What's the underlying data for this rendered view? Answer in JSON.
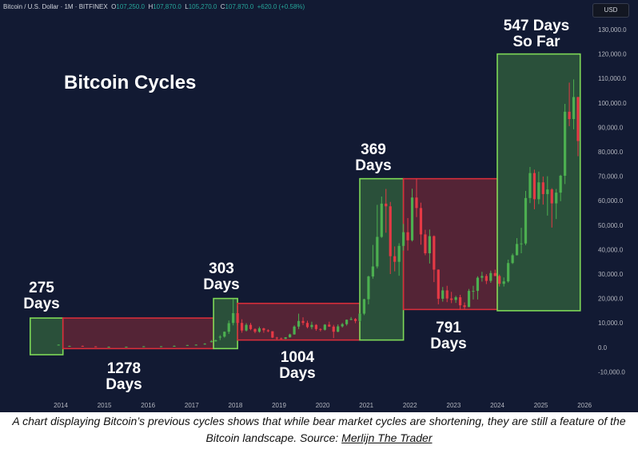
{
  "header": {
    "symbol": "Bitcoin / U.S. Dollar · 1M · BITFINEX",
    "o_label": "O",
    "o_value": "107,250.0",
    "h_label": "H",
    "h_value": "107,870.0",
    "l_label": "L",
    "l_value": "105,270.0",
    "c_label": "C",
    "c_value": "107,870.0",
    "change": "+620.0 (+0.58%)"
  },
  "currency_button": "USD",
  "colors": {
    "background": "#121a33",
    "bull_fill": "#2f5a3c",
    "bull_border": "#7ed957",
    "bear_fill": "#6b2838",
    "bear_border": "#d62e3a",
    "candle_up": "#4caf50",
    "candle_down": "#e53945"
  },
  "chart_data": {
    "type": "candlestick",
    "title": "Bitcoin Cycles",
    "x_ticks": [
      "2014",
      "2015",
      "2016",
      "2017",
      "2018",
      "2019",
      "2020",
      "2021",
      "2022",
      "2023",
      "2024",
      "2025",
      "2026"
    ],
    "y_ticks": [
      "130,000.0",
      "120,000.0",
      "110,000.0",
      "100,000.0",
      "90,000.0",
      "80,000.0",
      "70,000.0",
      "60,000.0",
      "50,000.0",
      "40,000.0",
      "30,000.0",
      "20,000.0",
      "10,000.0",
      "0.0",
      "-10,000.0"
    ],
    "ylim": [
      -10000,
      130000
    ],
    "xlim": [
      2014,
      2026
    ],
    "cycles": [
      {
        "phase": "bull",
        "start": 2013.3,
        "end": 2014.05,
        "low": -3000,
        "high": 12000,
        "label_lines": [
          "275",
          "Days"
        ],
        "label_pos": "above"
      },
      {
        "phase": "bear",
        "start": 2014.05,
        "end": 2017.5,
        "low": -500,
        "high": 12000,
        "label_lines": [
          "1278",
          "Days"
        ],
        "label_pos": "below"
      },
      {
        "phase": "bull",
        "start": 2017.5,
        "end": 2018.05,
        "low": -500,
        "high": 20000,
        "label_lines": [
          "303",
          "Days"
        ],
        "label_pos": "above"
      },
      {
        "phase": "bear",
        "start": 2018.05,
        "end": 2020.85,
        "low": 3000,
        "high": 18000,
        "label_lines": [
          "1004",
          "Days"
        ],
        "label_pos": "below"
      },
      {
        "phase": "bull",
        "start": 2020.85,
        "end": 2021.85,
        "low": 3000,
        "high": 69000,
        "label_lines": [
          "369",
          "Days"
        ],
        "label_pos": "above"
      },
      {
        "phase": "bear",
        "start": 2021.85,
        "end": 2024.0,
        "low": 15500,
        "high": 69000,
        "label_lines": [
          "791",
          "Days"
        ],
        "label_pos": "below"
      },
      {
        "phase": "bull",
        "start": 2024.0,
        "end": 2025.9,
        "low": 15000,
        "high": 120000,
        "label_lines": [
          "547 Days",
          "So Far"
        ],
        "label_pos": "above"
      }
    ],
    "candles": [
      [
        2013.95,
        900,
        1100,
        1200,
        800
      ],
      [
        2014.2,
        600,
        600,
        700,
        450
      ],
      [
        2014.5,
        620,
        600,
        700,
        500
      ],
      [
        2014.8,
        400,
        370,
        450,
        300
      ],
      [
        2015.1,
        250,
        250,
        320,
        170
      ],
      [
        2015.5,
        250,
        280,
        300,
        220
      ],
      [
        2015.9,
        350,
        430,
        500,
        330
      ],
      [
        2016.3,
        420,
        450,
        480,
        400
      ],
      [
        2016.6,
        600,
        620,
        780,
        550
      ],
      [
        2016.9,
        700,
        960,
        1000,
        700
      ],
      [
        2017.1,
        1000,
        1100,
        1200,
        900
      ],
      [
        2017.3,
        1200,
        1500,
        1700,
        1100
      ],
      [
        2017.45,
        2400,
        2500,
        3000,
        2000
      ],
      [
        2017.55,
        2500,
        2900,
        3200,
        2300
      ],
      [
        2017.65,
        4000,
        4400,
        5000,
        3000
      ],
      [
        2017.75,
        4400,
        6400,
        6500,
        4000
      ],
      [
        2017.85,
        6400,
        9900,
        11000,
        5500
      ],
      [
        2017.95,
        10000,
        14000,
        19800,
        9000
      ],
      [
        2018.05,
        14000,
        10000,
        17000,
        9000
      ],
      [
        2018.15,
        10000,
        6900,
        11500,
        6000
      ],
      [
        2018.25,
        6900,
        9200,
        9900,
        6500
      ],
      [
        2018.35,
        9200,
        7500,
        10000,
        7000
      ],
      [
        2018.45,
        7500,
        6400,
        7800,
        5800
      ],
      [
        2018.55,
        6400,
        7800,
        8500,
        6000
      ],
      [
        2018.65,
        7800,
        7000,
        8000,
        6000
      ],
      [
        2018.75,
        7000,
        6600,
        7400,
        6200
      ],
      [
        2018.85,
        6600,
        4000,
        6600,
        3800
      ],
      [
        2018.95,
        4000,
        3700,
        4300,
        3100
      ],
      [
        2019.05,
        3700,
        3500,
        4000,
        3300
      ],
      [
        2019.15,
        3500,
        4100,
        4200,
        3400
      ],
      [
        2019.25,
        4100,
        5300,
        5600,
        4000
      ],
      [
        2019.35,
        5300,
        8500,
        9000,
        5200
      ],
      [
        2019.45,
        8500,
        10800,
        13800,
        7500
      ],
      [
        2019.55,
        10800,
        10000,
        12300,
        9100
      ],
      [
        2019.65,
        10000,
        8300,
        10900,
        7800
      ],
      [
        2019.75,
        8300,
        9200,
        10500,
        7400
      ],
      [
        2019.85,
        9200,
        7500,
        9500,
        6800
      ],
      [
        2019.95,
        7500,
        7200,
        7800,
        6500
      ],
      [
        2020.05,
        7200,
        9300,
        9500,
        6900
      ],
      [
        2020.15,
        9300,
        8500,
        10500,
        8400
      ],
      [
        2020.25,
        8500,
        6400,
        9200,
        3800
      ],
      [
        2020.35,
        6400,
        8600,
        9400,
        6200
      ],
      [
        2020.45,
        8600,
        9500,
        10000,
        8100
      ],
      [
        2020.55,
        9500,
        11300,
        11400,
        8900
      ],
      [
        2020.65,
        11300,
        11600,
        12400,
        11100
      ],
      [
        2020.75,
        11600,
        10800,
        12000,
        9900
      ],
      [
        2020.85,
        10800,
        13800,
        14000,
        10400
      ],
      [
        2020.95,
        13800,
        19700,
        19900,
        13200
      ],
      [
        2021.05,
        19700,
        29000,
        29300,
        17600
      ],
      [
        2021.15,
        29000,
        33100,
        41900,
        28100
      ],
      [
        2021.25,
        33100,
        45200,
        58300,
        32300
      ],
      [
        2021.35,
        45200,
        58800,
        61700,
        44800
      ],
      [
        2021.45,
        58800,
        57700,
        64800,
        46900
      ],
      [
        2021.55,
        57700,
        37300,
        59500,
        30000
      ],
      [
        2021.65,
        37300,
        35000,
        41300,
        31100
      ],
      [
        2021.75,
        35000,
        41500,
        42600,
        29300
      ],
      [
        2021.85,
        41500,
        47100,
        50500,
        39600
      ],
      [
        2021.95,
        47100,
        43800,
        52900,
        39600
      ],
      [
        2022.05,
        43800,
        61300,
        64900,
        43300
      ],
      [
        2022.15,
        61300,
        57000,
        69000,
        53300
      ],
      [
        2022.25,
        57000,
        46200,
        59200,
        42000
      ],
      [
        2022.35,
        46200,
        38500,
        48100,
        37700
      ],
      [
        2022.45,
        38500,
        45500,
        48200,
        34300
      ],
      [
        2022.55,
        45500,
        31800,
        45800,
        26700
      ],
      [
        2022.65,
        31800,
        19900,
        31900,
        17600
      ],
      [
        2022.75,
        19900,
        23300,
        24700,
        18700
      ],
      [
        2022.85,
        23300,
        20000,
        25200,
        18500
      ],
      [
        2022.95,
        20000,
        19400,
        22700,
        18100
      ],
      [
        2023.05,
        19400,
        20500,
        21100,
        18200
      ],
      [
        2023.15,
        20500,
        17200,
        21500,
        15500
      ],
      [
        2023.25,
        17200,
        16500,
        18400,
        15500
      ],
      [
        2023.35,
        16500,
        23100,
        23900,
        16500
      ],
      [
        2023.45,
        23100,
        23100,
        25200,
        19600
      ],
      [
        2023.55,
        23100,
        28500,
        29100,
        19600
      ],
      [
        2023.65,
        28500,
        29200,
        30900,
        26900
      ],
      [
        2023.75,
        29200,
        27200,
        30000,
        25900
      ],
      [
        2023.85,
        27200,
        30400,
        31400,
        26400
      ],
      [
        2023.95,
        30400,
        29200,
        31800,
        29100
      ],
      [
        2024.05,
        29200,
        26000,
        29800,
        24900
      ],
      [
        2024.15,
        26000,
        27000,
        28600,
        24900
      ],
      [
        2024.25,
        27000,
        34500,
        35900,
        26500
      ],
      [
        2024.35,
        34500,
        37700,
        38400,
        34100
      ],
      [
        2024.45,
        37700,
        42300,
        44700,
        37600
      ],
      [
        2024.55,
        42300,
        42500,
        48900,
        38500
      ],
      [
        2024.65,
        42500,
        61100,
        64000,
        41800
      ],
      [
        2024.75,
        61100,
        71300,
        73800,
        59000
      ],
      [
        2024.85,
        71300,
        60600,
        72700,
        56500
      ],
      [
        2024.95,
        60600,
        67500,
        71900,
        58600
      ],
      [
        2025.05,
        67500,
        62700,
        69900,
        58400
      ],
      [
        2025.15,
        62700,
        64600,
        70000,
        53900
      ],
      [
        2025.25,
        64600,
        58900,
        65100,
        49000
      ],
      [
        2025.35,
        58900,
        63300,
        64800,
        52500
      ],
      [
        2025.45,
        63300,
        70200,
        70600,
        59800
      ],
      [
        2025.55,
        70200,
        96400,
        99600,
        66800
      ],
      [
        2025.65,
        96400,
        93400,
        108300,
        90500
      ],
      [
        2025.75,
        93400,
        102400,
        109600,
        89200
      ],
      [
        2025.85,
        102400,
        84400,
        102500,
        78200
      ],
      [
        2025.95,
        84400,
        82500,
        95000,
        76600
      ],
      [
        2026.05,
        82500,
        94200,
        97900,
        74400
      ],
      [
        2026.15,
        94200,
        104600,
        106000,
        93300
      ],
      [
        2026.25,
        104600,
        107800,
        111900,
        100400
      ],
      [
        2026.35,
        107250,
        107870,
        107870,
        105270
      ]
    ]
  },
  "caption": {
    "text": "A chart displaying Bitcoin’s previous cycles shows that while bear market cycles are shortening, they are still a feature of the Bitcoin landscape. Source: ",
    "link": "Merlijn The Trader"
  }
}
